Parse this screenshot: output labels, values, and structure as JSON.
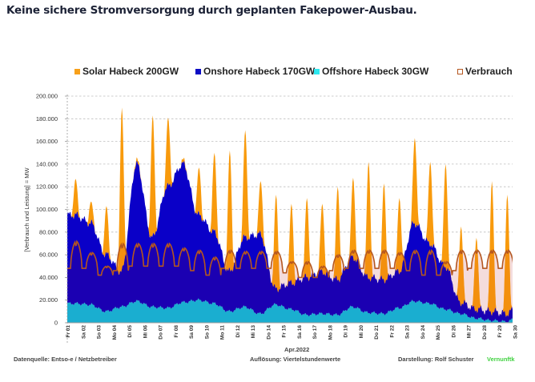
{
  "headline": "Keine sichere Stromversorgung durch geplanten Fakepower-Ausbau.",
  "legend": [
    {
      "label": "Solar Habeck 200GW",
      "color": "#f7a01a",
      "style": "filled"
    },
    {
      "label": "Onshore Habeck 170GW",
      "color": "#0c0cc4",
      "style": "filled"
    },
    {
      "label": "Offshore Habeck 30GW",
      "color": "#2ee8f0",
      "style": "filled"
    },
    {
      "label": "Verbrauch",
      "color": "#b5561f",
      "style": "outline"
    }
  ],
  "footer": {
    "source": "Datenquelle: Entso-e  / Netzbetreiber",
    "resolution": "Auflösung: Viertelstundenwerte",
    "author": "Darstellung:  Rolf Schuster",
    "brand": "Vernunftk"
  },
  "chart_data": {
    "type": "area",
    "title": "",
    "xlabel": "Apr.2022",
    "ylabel": "[Verbrauch und Leistung] = MW",
    "ylim": [
      0,
      200000
    ],
    "yticks": [
      "0",
      "20.000",
      "40.000",
      "60.000",
      "80.000",
      "100.000",
      "120.000",
      "140.000",
      "160.000",
      "180.000",
      "200.000"
    ],
    "grid": true,
    "legend_position": "top",
    "categories": [
      "Fr 01",
      "Sa 02",
      "So 03",
      "Mo 04",
      "Di 05",
      "Mi 06",
      "Do 07",
      "Fr 08",
      "Sa 09",
      "So 10",
      "Mo 11",
      "Di 12",
      "Mi 13",
      "Do 14",
      "Fr 15",
      "Sa 16",
      "So 17",
      "Mo 18",
      "Di 19",
      "Mi 20",
      "Do 21",
      "Fr 22",
      "Sa 23",
      "So 24",
      "Mo 25",
      "Di 26",
      "Mi 27",
      "Do 28",
      "Fr 29",
      "Sa 30"
    ],
    "series": [
      {
        "name": "Offshore Habeck 30GW",
        "color": "#1aaed0",
        "stack": 1,
        "values": [
          17000,
          16000,
          10000,
          14000,
          19000,
          14000,
          13000,
          18000,
          20000,
          17000,
          10000,
          14000,
          8000,
          16000,
          12000,
          7000,
          8000,
          7000,
          14000,
          9000,
          8000,
          13000,
          19000,
          17000,
          12000,
          8000,
          4000,
          2000,
          1000,
          8000
        ]
      },
      {
        "name": "Onshore Habeck 170GW",
        "color": "#1000b8",
        "stack": 2,
        "values": [
          95000,
          88000,
          60000,
          45000,
          140000,
          75000,
          120000,
          140000,
          95000,
          80000,
          45000,
          75000,
          78000,
          30000,
          35000,
          40000,
          45000,
          38000,
          58000,
          40000,
          38000,
          45000,
          88000,
          70000,
          50000,
          18000,
          12000,
          10000,
          8000,
          20000
        ]
      },
      {
        "name": "Solar Habeck 200GW",
        "color": "#f89a0c",
        "stack": 3,
        "values": [
          127000,
          107000,
          103000,
          190000,
          97000,
          183000,
          181000,
          138000,
          137000,
          150000,
          152000,
          170000,
          125000,
          113000,
          105000,
          110000,
          105000,
          120000,
          128000,
          142000,
          123000,
          110000,
          163000,
          142000,
          140000,
          85000,
          75000,
          125000,
          113000,
          115000
        ]
      },
      {
        "name": "Verbrauch",
        "color": "#b5561f",
        "type": "line",
        "day_peak": [
          72000,
          62000,
          50000,
          70000,
          70000,
          70000,
          70000,
          66000,
          64000,
          58000,
          64000,
          63000,
          63000,
          63000,
          54000,
          54000,
          50000,
          60000,
          64000,
          64000,
          64000,
          62000,
          64000,
          64000,
          54000,
          64000,
          64000,
          64000,
          64000,
          62000
        ],
        "night_low": [
          48000,
          48000,
          42000,
          46000,
          50000,
          50000,
          50000,
          50000,
          46000,
          42000,
          48000,
          48000,
          48000,
          48000,
          44000,
          40000,
          40000,
          46000,
          48000,
          48000,
          48000,
          48000,
          46000,
          42000,
          42000,
          46000,
          48000,
          48000,
          48000,
          48000
        ]
      }
    ]
  }
}
